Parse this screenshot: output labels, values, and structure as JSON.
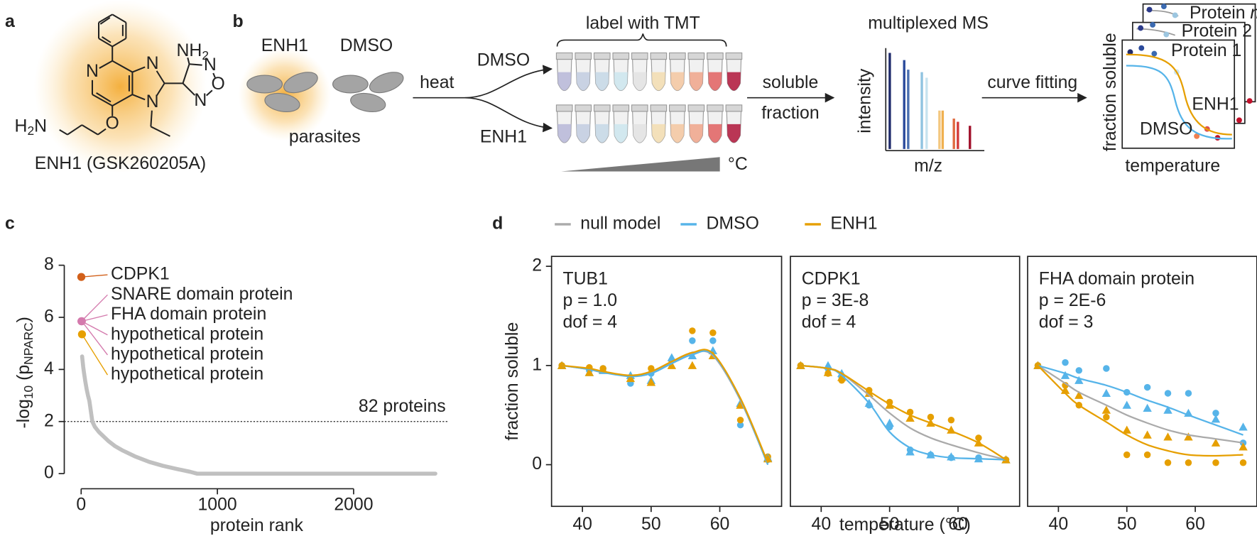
{
  "panel_labels": [
    "a",
    "b",
    "c",
    "d"
  ],
  "panel_a": {
    "atoms": [
      "N",
      "N",
      "N",
      "N",
      "O",
      "N",
      "O"
    ],
    "nh2": [
      "NH",
      "2"
    ],
    "h2n": [
      "H",
      "2",
      "N"
    ],
    "caption": "ENH1 (GSK260205A)"
  },
  "panel_b": {
    "groups": [
      "ENH1",
      "DMSO"
    ],
    "parasites": "parasites",
    "heat": "heat",
    "branches": [
      "DMSO",
      "ENH1"
    ],
    "tmt": "label with TMT",
    "temp_unit": "°C",
    "soluble": [
      "soluble",
      "fraction"
    ],
    "ms_title": "multiplexed MS",
    "ms_ylabel": "intensity",
    "ms_xlabel": "m/z",
    "fit": "curve fitting",
    "card_labels": [
      {
        "text": "Protein",
        "italic": "n"
      },
      "Protein 2",
      "Protein 1"
    ],
    "curve_labels": [
      "ENH1",
      "DMSO"
    ],
    "card_ylabel": "fraction soluble",
    "card_xlabel": "temperature"
  },
  "chart_data": [
    {
      "type": "scatter",
      "xlabel": "protein rank",
      "ylabel_parts": [
        "-log",
        "10",
        " (p",
        "NPARC",
        ")"
      ],
      "xlim": [
        -124,
        2700
      ],
      "ylim": [
        -0.58,
        8.34
      ],
      "xticks": [
        0,
        1000,
        2000
      ],
      "yticks": [
        0,
        2,
        4,
        6,
        8
      ],
      "x": [
        7,
        10,
        15,
        20,
        30,
        40,
        50,
        60,
        82,
        100,
        130,
        160,
        200,
        250,
        300,
        400,
        500,
        600,
        700,
        800,
        850,
        1000,
        1500,
        2000,
        2600
      ],
      "series": [
        {
          "color": "#c0c0c0",
          "values": [
            4.5,
            4.35,
            4.1,
            3.9,
            3.55,
            3.25,
            3.0,
            2.8,
            2.0,
            1.8,
            1.6,
            1.45,
            1.25,
            1.05,
            0.9,
            0.65,
            0.45,
            0.3,
            0.18,
            0.07,
            0,
            0,
            0,
            0,
            0
          ]
        }
      ],
      "threshold": 2,
      "threshold_label": "82 proteins",
      "highlights": {
        "x": [
          1,
          2,
          3,
          4,
          5,
          6
        ],
        "values": [
          7.55,
          5.85,
          5.85,
          5.85,
          5.85,
          5.35
        ],
        "labels": [
          "CDPK1",
          "SNARE domain protein",
          "FHA domain protein",
          "hypothetical protein",
          "hypothetical protein",
          "hypothetical protein"
        ],
        "colors": [
          "#d2601a",
          "#d47aad",
          "#d47aad",
          "#d47aad",
          "#d47aad",
          "#e69f00"
        ]
      }
    },
    {
      "type": "line",
      "annotations": [
        "TUB1",
        "p = 1.0",
        "dof = 4"
      ],
      "ylabel": "fraction soluble",
      "xlim": [
        35.5,
        69
      ],
      "ylim": [
        -0.42,
        2.1
      ],
      "xticks": [
        40,
        50,
        60
      ],
      "yticks": [
        0,
        1,
        2
      ],
      "x": [
        37,
        41,
        43,
        47,
        50,
        53,
        56,
        59,
        63,
        67
      ],
      "series": [
        {
          "name": "null model",
          "color": "#aaaaaa",
          "values": [
            1,
            0.96,
            0.93,
            0.9,
            0.93,
            1.03,
            1.12,
            1.1,
            0.65,
            0.0
          ]
        },
        {
          "name": "DMSO",
          "color": "#56b4e9",
          "values": [
            1,
            0.96,
            0.93,
            0.89,
            0.92,
            1.02,
            1.11,
            1.11,
            0.66,
            0.0
          ]
        },
        {
          "name": "ENH1",
          "color": "#e69f00",
          "values": [
            1,
            0.97,
            0.94,
            0.9,
            0.94,
            1.04,
            1.13,
            1.12,
            0.67,
            0.02
          ]
        }
      ],
      "points": [
        {
          "color": "#56b4e9",
          "marker": "circle",
          "values": [
            1,
            0.95,
            0.97,
            0.82,
            0.92,
            1.05,
            1.25,
            1.25,
            0.4,
            0.05
          ]
        },
        {
          "color": "#e69f00",
          "marker": "circle",
          "values": [
            1,
            0.98,
            0.97,
            0.88,
            0.97,
            1.05,
            1.35,
            1.33,
            0.45,
            0.08
          ]
        },
        {
          "color": "#56b4e9",
          "marker": "triangle",
          "values": [
            1,
            0.93,
            0.95,
            0.9,
            0.85,
            1.08,
            1.1,
            1.15,
            0.62,
            0.07
          ]
        },
        {
          "color": "#e69f00",
          "marker": "triangle",
          "values": [
            1,
            0.93,
            0.96,
            0.87,
            0.83,
            1.0,
            1.0,
            1.1,
            0.6,
            0.06
          ]
        }
      ]
    },
    {
      "type": "line",
      "annotations": [
        "CDPK1",
        "p = 3E-8",
        "dof = 4"
      ],
      "xlabel": "temperature (°C)",
      "xlim": [
        35.5,
        69
      ],
      "ylim": [
        -0.42,
        2.1
      ],
      "xticks": [
        40,
        50,
        60
      ],
      "x": [
        37,
        41,
        43,
        47,
        50,
        53,
        56,
        59,
        63,
        67
      ],
      "series": [
        {
          "color": "#aaaaaa",
          "values": [
            1,
            0.97,
            0.92,
            0.7,
            0.52,
            0.37,
            0.27,
            0.2,
            0.12,
            0.05
          ]
        },
        {
          "color": "#56b4e9",
          "values": [
            1,
            0.97,
            0.9,
            0.62,
            0.33,
            0.17,
            0.1,
            0.07,
            0.06,
            0.05
          ]
        },
        {
          "color": "#e69f00",
          "values": [
            1,
            0.97,
            0.92,
            0.74,
            0.61,
            0.5,
            0.42,
            0.34,
            0.22,
            0.05
          ]
        }
      ],
      "points": [
        {
          "color": "#56b4e9",
          "marker": "circle",
          "values": [
            1,
            0.97,
            0.88,
            0.6,
            0.38,
            0.15,
            0.1,
            0.07,
            0.07,
            0.05
          ]
        },
        {
          "color": "#e69f00",
          "marker": "circle",
          "values": [
            1,
            0.92,
            0.85,
            0.75,
            0.63,
            0.53,
            0.48,
            0.45,
            0.27,
            0.05
          ]
        },
        {
          "color": "#56b4e9",
          "marker": "triangle",
          "values": [
            1,
            1,
            0.92,
            0.62,
            0.42,
            0.13,
            0.1,
            0.08,
            0.06,
            0.05
          ]
        },
        {
          "color": "#e69f00",
          "marker": "triangle",
          "values": [
            1,
            0.93,
            0.88,
            0.72,
            0.6,
            0.47,
            0.42,
            0.35,
            0.22,
            0.05
          ]
        }
      ]
    },
    {
      "type": "line",
      "annotations": [
        "FHA domain protein",
        "p = 2E-6",
        "dof = 3"
      ],
      "xlim": [
        35.5,
        69
      ],
      "ylim": [
        -0.42,
        2.1
      ],
      "xticks": [
        40,
        50,
        60
      ],
      "x": [
        37,
        41,
        43,
        47,
        50,
        53,
        56,
        59,
        63,
        67
      ],
      "series": [
        {
          "color": "#aaaaaa",
          "values": [
            1,
            0.82,
            0.73,
            0.6,
            0.5,
            0.42,
            0.35,
            0.3,
            0.26,
            0.22
          ]
        },
        {
          "color": "#56b4e9",
          "values": [
            1,
            0.92,
            0.87,
            0.8,
            0.73,
            0.65,
            0.58,
            0.5,
            0.4,
            0.3
          ]
        },
        {
          "color": "#e69f00",
          "values": [
            1,
            0.72,
            0.6,
            0.43,
            0.3,
            0.2,
            0.14,
            0.1,
            0.09,
            0.1
          ]
        }
      ],
      "points": [
        {
          "color": "#56b4e9",
          "marker": "circle",
          "values": [
            1,
            1.03,
            0.95,
            0.97,
            0.73,
            0.78,
            0.72,
            0.72,
            0.52,
            0.22
          ]
        },
        {
          "color": "#e69f00",
          "marker": "circle",
          "values": [
            1,
            0.8,
            0.6,
            0.48,
            0.1,
            0.1,
            0.02,
            0.02,
            0.02,
            0.02
          ]
        },
        {
          "color": "#56b4e9",
          "marker": "triangle",
          "values": [
            1,
            0.9,
            0.85,
            0.72,
            0.6,
            0.57,
            0.55,
            0.52,
            0.46,
            0.38
          ]
        },
        {
          "color": "#e69f00",
          "marker": "triangle",
          "values": [
            1,
            0.75,
            0.7,
            0.55,
            0.35,
            0.3,
            0.28,
            0.28,
            0.22,
            0.18
          ]
        }
      ]
    }
  ]
}
